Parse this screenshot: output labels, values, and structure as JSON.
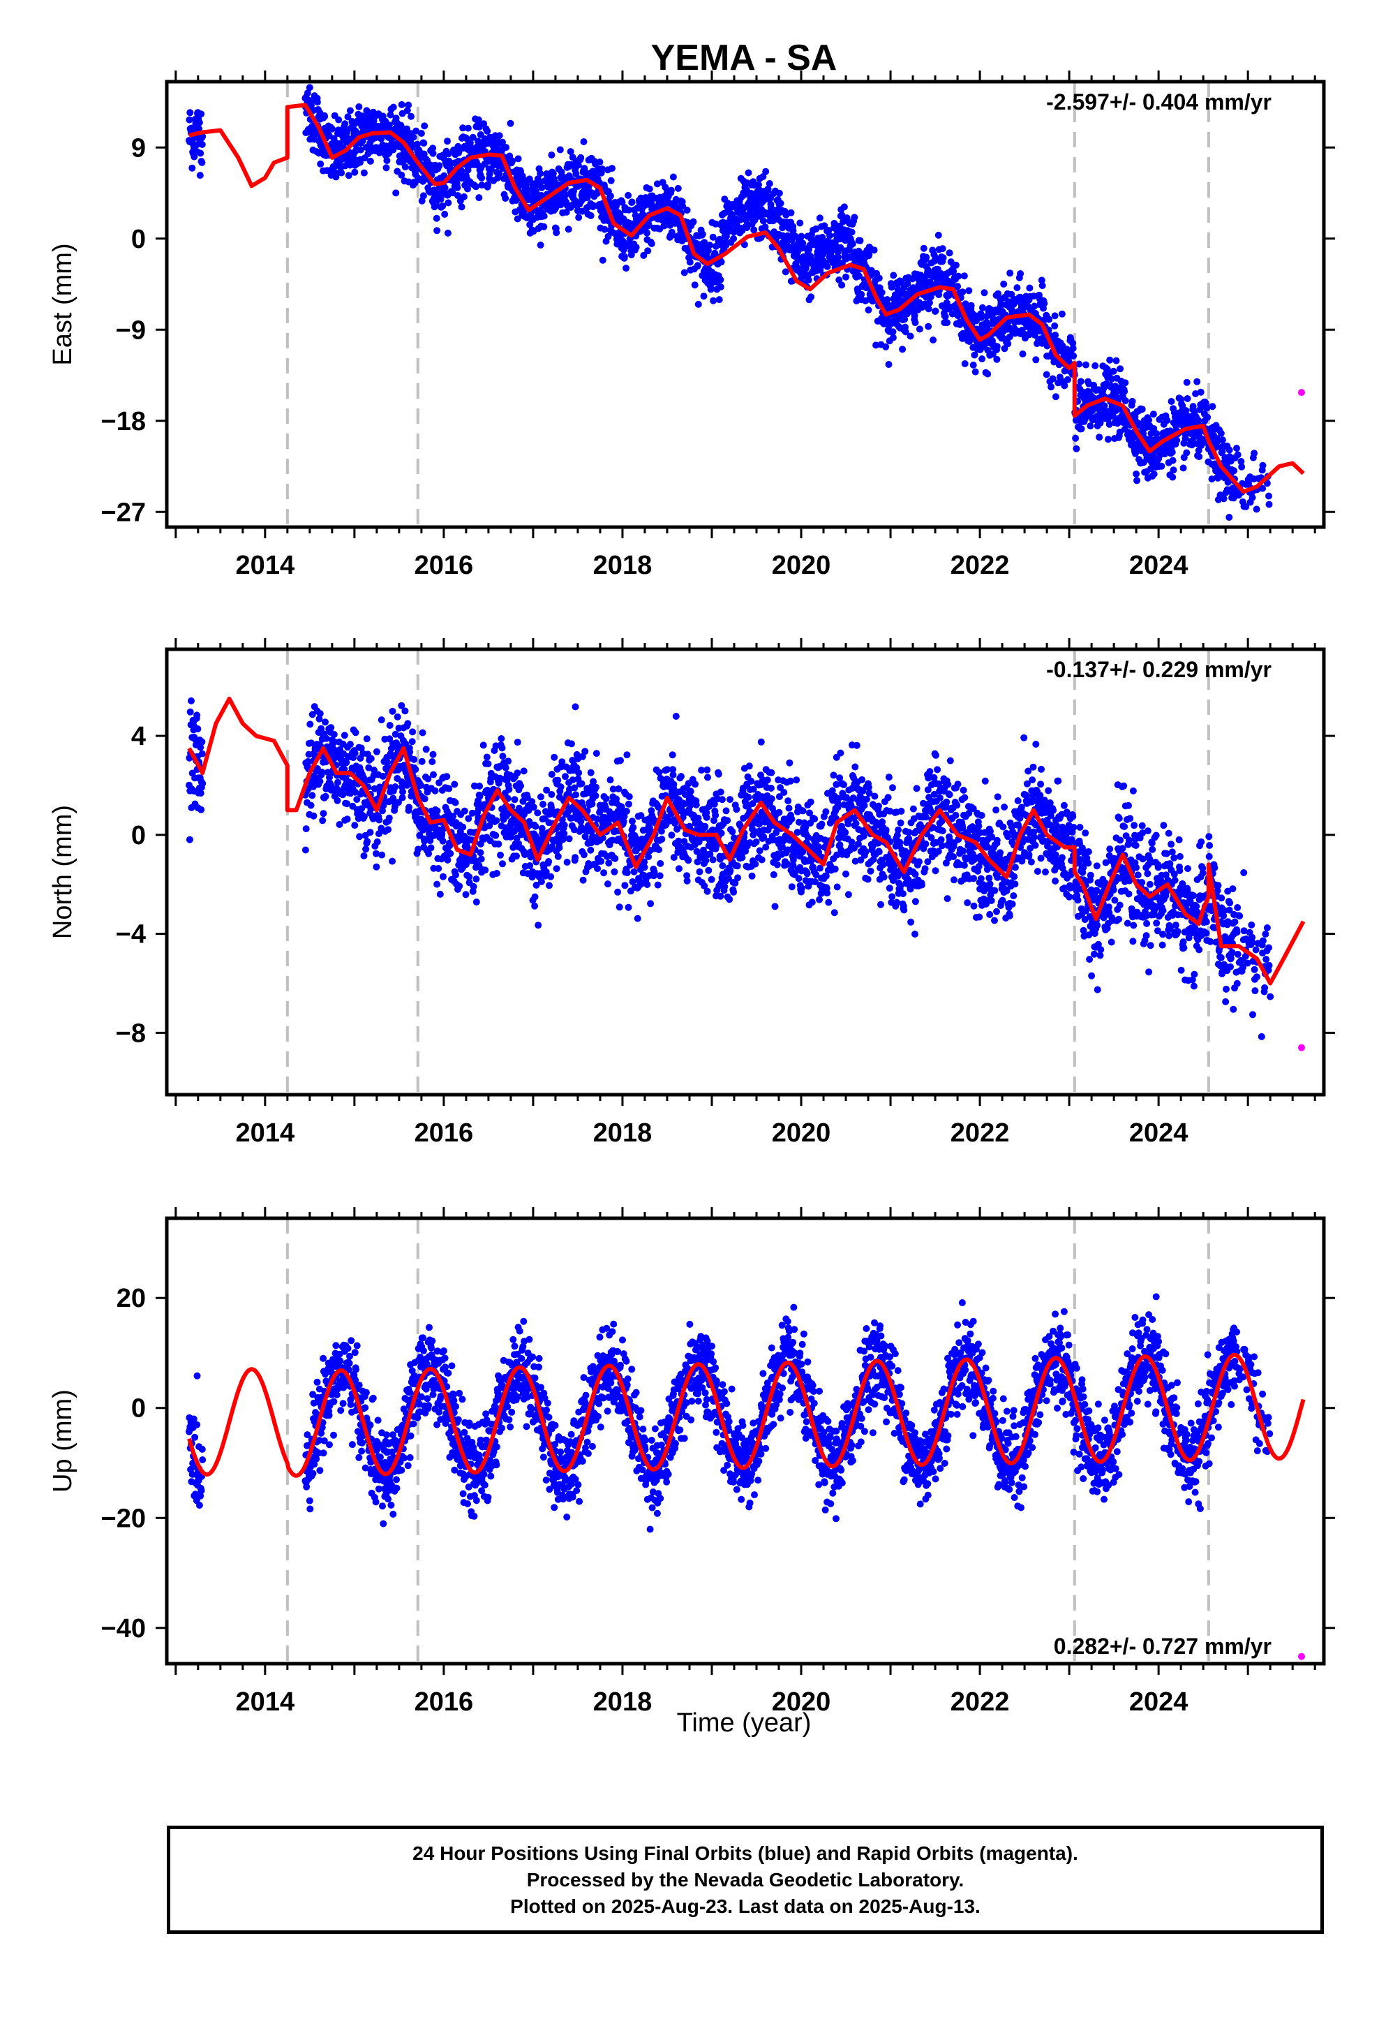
{
  "station_title": "YEMA - SA",
  "colors": {
    "final_orbits": "#0000ff",
    "rapid_orbits": "#ff00ff",
    "model": "#ff0000",
    "event_line": "#c0c0c0",
    "frame": "#000000"
  },
  "chart_data": [
    {
      "type": "scatter",
      "component": "east",
      "title": "YEMA - SA",
      "ylabel": "East (mm)",
      "xlabel": "",
      "xlim": [
        2012.9,
        2025.85
      ],
      "ylim": [
        -28.5,
        15.5
      ],
      "yticks": [
        9,
        0,
        -9,
        -18,
        -27
      ],
      "ytick_labels": [
        "9",
        "0",
        "−9",
        "−18",
        "−27"
      ],
      "xticks": [
        2014,
        2016,
        2018,
        2020,
        2022,
        2024
      ],
      "rate_label": "-2.597+/- 0.404 mm/yr",
      "rate_position": "top-right",
      "event_lines": [
        2014.25,
        2015.71,
        2023.06,
        2024.56
      ],
      "model_curve": {
        "x": [
          2013.15,
          2013.3,
          2013.5,
          2013.7,
          2013.85,
          2014.0,
          2014.1,
          2014.25,
          2014.25,
          2014.45,
          2014.6,
          2014.75,
          2014.9,
          2015.05,
          2015.2,
          2015.4,
          2015.55,
          2015.71,
          2015.9,
          2016.0,
          2016.15,
          2016.3,
          2016.5,
          2016.65,
          2016.8,
          2016.95,
          2017.15,
          2017.4,
          2017.6,
          2017.75,
          2017.9,
          2018.1,
          2018.3,
          2018.5,
          2018.65,
          2018.8,
          2018.95,
          2019.15,
          2019.4,
          2019.6,
          2019.75,
          2019.95,
          2020.1,
          2020.3,
          2020.55,
          2020.7,
          2020.85,
          2020.95,
          2021.1,
          2021.3,
          2021.55,
          2021.7,
          2021.85,
          2022.0,
          2022.1,
          2022.3,
          2022.55,
          2022.7,
          2022.85,
          2023.0,
          2023.06,
          2023.06,
          2023.2,
          2023.4,
          2023.6,
          2023.75,
          2023.9,
          2024.05,
          2024.3,
          2024.5,
          2024.56,
          2024.7,
          2024.85,
          2024.95,
          2025.1,
          2025.35,
          2025.5,
          2025.62
        ],
        "y": [
          10.2,
          10.5,
          10.7,
          8.0,
          5.2,
          6.0,
          7.5,
          8.0,
          13.0,
          13.2,
          11.0,
          8.0,
          8.7,
          10.0,
          10.4,
          10.5,
          9.5,
          7.5,
          5.4,
          5.5,
          7.0,
          8.0,
          8.3,
          8.2,
          5.0,
          2.8,
          4.0,
          5.5,
          5.8,
          5.0,
          1.5,
          0.3,
          2.3,
          3.0,
          2.3,
          -1.5,
          -2.5,
          -1.5,
          0.2,
          0.6,
          -1.0,
          -4.2,
          -5.0,
          -3.4,
          -2.6,
          -3.0,
          -6.0,
          -7.5,
          -7.0,
          -5.5,
          -4.8,
          -5.0,
          -8.0,
          -10.0,
          -9.5,
          -7.8,
          -7.5,
          -8.5,
          -11.5,
          -12.8,
          -12.3,
          -17.5,
          -16.5,
          -15.8,
          -16.5,
          -19.0,
          -21.0,
          -20.0,
          -18.8,
          -18.5,
          -20.0,
          -22.5,
          -24.0,
          -25.0,
          -24.5,
          -22.5,
          -22.2,
          -23.2
        ]
      },
      "rapid_points": [
        {
          "x": 2025.6,
          "y": -15.2
        }
      ],
      "final_points_summary": "dense daily cloud of ~4000 points along the model trend with ±3 mm scatter"
    },
    {
      "type": "scatter",
      "component": "north",
      "ylabel": "North (mm)",
      "xlabel": "",
      "xlim": [
        2012.9,
        2025.85
      ],
      "ylim": [
        -10.5,
        7.5
      ],
      "yticks": [
        4,
        0,
        -4,
        -8
      ],
      "ytick_labels": [
        "4",
        "0",
        "−4",
        "−8"
      ],
      "xticks": [
        2014,
        2016,
        2018,
        2020,
        2022,
        2024
      ],
      "rate_label": "-0.137+/- 0.229 mm/yr",
      "rate_position": "top-right",
      "event_lines": [
        2014.25,
        2015.71,
        2023.06,
        2024.56
      ],
      "model_curve": {
        "x": [
          2013.15,
          2013.3,
          2013.45,
          2013.6,
          2013.75,
          2013.9,
          2014.1,
          2014.25,
          2014.25,
          2014.35,
          2014.5,
          2014.65,
          2014.8,
          2014.95,
          2015.1,
          2015.25,
          2015.4,
          2015.55,
          2015.71,
          2015.85,
          2016.0,
          2016.15,
          2016.3,
          2016.45,
          2016.6,
          2016.75,
          2016.9,
          2017.05,
          2017.25,
          2017.4,
          2017.55,
          2017.75,
          2017.95,
          2018.15,
          2018.35,
          2018.5,
          2018.7,
          2018.85,
          2019.05,
          2019.2,
          2019.35,
          2019.55,
          2019.7,
          2019.9,
          2020.05,
          2020.25,
          2020.4,
          2020.6,
          2020.8,
          2020.95,
          2021.15,
          2021.35,
          2021.55,
          2021.75,
          2021.95,
          2022.1,
          2022.3,
          2022.45,
          2022.6,
          2022.75,
          2022.95,
          2023.06,
          2023.06,
          2023.15,
          2023.3,
          2023.45,
          2023.6,
          2023.75,
          2023.9,
          2024.1,
          2024.3,
          2024.45,
          2024.5,
          2024.56,
          2024.56,
          2024.7,
          2024.9,
          2025.1,
          2025.25,
          2025.4,
          2025.62
        ],
        "y": [
          3.5,
          2.5,
          4.5,
          5.5,
          4.5,
          4.0,
          3.8,
          2.8,
          1.0,
          1.0,
          2.5,
          3.5,
          2.5,
          2.5,
          2.0,
          1.0,
          2.5,
          3.5,
          1.5,
          0.5,
          0.6,
          -0.6,
          -0.8,
          0.8,
          1.8,
          1.0,
          0.5,
          -1.0,
          0.5,
          1.5,
          1.0,
          0.0,
          0.5,
          -1.3,
          0.0,
          1.5,
          0.2,
          0.0,
          0.0,
          -1.0,
          0.2,
          1.3,
          0.5,
          0.0,
          -0.5,
          -1.2,
          0.5,
          1.0,
          0.0,
          -0.3,
          -1.5,
          0.0,
          1.0,
          0.0,
          -0.3,
          -1.0,
          -1.7,
          0.0,
          1.0,
          0.0,
          -0.5,
          -0.5,
          -1.5,
          -2.0,
          -3.4,
          -2.0,
          -0.8,
          -2.0,
          -2.5,
          -2.0,
          -3.2,
          -3.6,
          -3.0,
          -2.5,
          -1.2,
          -4.5,
          -4.5,
          -5.0,
          -6.0,
          -5.0,
          -3.5
        ]
      },
      "rapid_points": [
        {
          "x": 2025.6,
          "y": -8.6
        }
      ],
      "final_points_summary": "dense daily cloud of ~4000 points along the model with ±2 mm scatter"
    },
    {
      "type": "scatter",
      "component": "up",
      "ylabel": "Up (mm)",
      "xlabel": "Time (year)",
      "xlim": [
        2012.9,
        2025.85
      ],
      "ylim": [
        -46.5,
        34.5
      ],
      "yticks": [
        20,
        0,
        -20,
        -40
      ],
      "ytick_labels": [
        "20",
        "0",
        "−20",
        "−40"
      ],
      "xticks": [
        2014,
        2016,
        2018,
        2020,
        2022,
        2024
      ],
      "xtick_labels": [
        "2014",
        "2016",
        "2018",
        "2020",
        "2022",
        "2024"
      ],
      "rate_label": "0.282+/- 0.727 mm/yr",
      "rate_position": "bottom-right",
      "event_lines": [
        2014.25,
        2015.71,
        2023.06,
        2024.56
      ],
      "seasonal_model": {
        "offset": -1.5,
        "amplitude": 9.5,
        "peak_phase": 0.85,
        "trend_mm_per_yr": 0.282
      },
      "rapid_points": [
        {
          "x": 2025.6,
          "y": -45.2
        }
      ],
      "final_points_summary": "dense daily cloud of ~4000 points following annual cycle with ±5 mm scatter"
    }
  ],
  "caption": {
    "line1": "24 Hour Positions Using Final Orbits (blue) and Rapid Orbits (magenta).",
    "line2": "Processed by the Nevada Geodetic Laboratory.",
    "line3": "Plotted on 2025-Aug-23. Last data on 2025-Aug-13."
  }
}
